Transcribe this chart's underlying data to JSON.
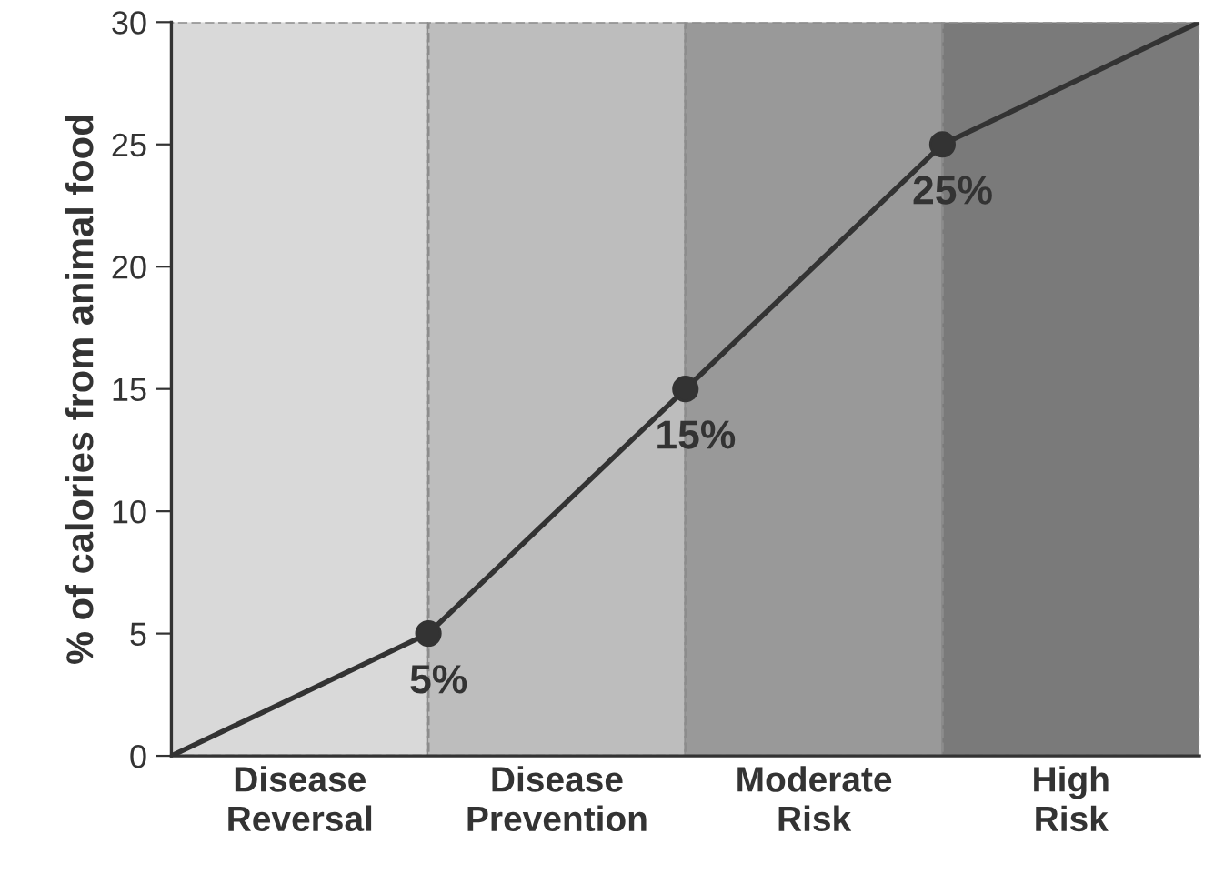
{
  "chart_data": {
    "type": "line",
    "ylabel": "% of calories from animal food",
    "categories": [
      null,
      "Disease\nReversal",
      null,
      "Disease\nPrevention",
      null,
      "Moderate\nRisk",
      null,
      "High\nRisk",
      null
    ],
    "ylim": [
      0,
      30
    ],
    "yticks": [
      0,
      5,
      10,
      15,
      20,
      25,
      30
    ],
    "series": [
      {
        "type": "bar",
        "line_style": "dashed",
        "values": [
          null,
          30,
          null,
          30,
          null,
          30,
          null,
          30,
          null
        ],
        "colors": [
          null,
          "#d9d9d9",
          null,
          "#bdbdbd",
          null,
          "#999999",
          null,
          "#7a7a7a",
          null
        ]
      },
      {
        "color": "#333333",
        "marker": "none",
        "values": [
          0,
          2.5,
          5,
          10,
          15,
          20,
          25,
          27.5,
          30
        ],
        "value_labels": [
          null,
          null,
          "5%",
          null,
          "15%",
          null,
          "25%",
          null,
          null
        ]
      },
      {
        "type": "scatter",
        "color": "#333333",
        "marker": "circle",
        "values": [
          null,
          null,
          5,
          null,
          15,
          null,
          25,
          null,
          null
        ]
      }
    ]
  }
}
